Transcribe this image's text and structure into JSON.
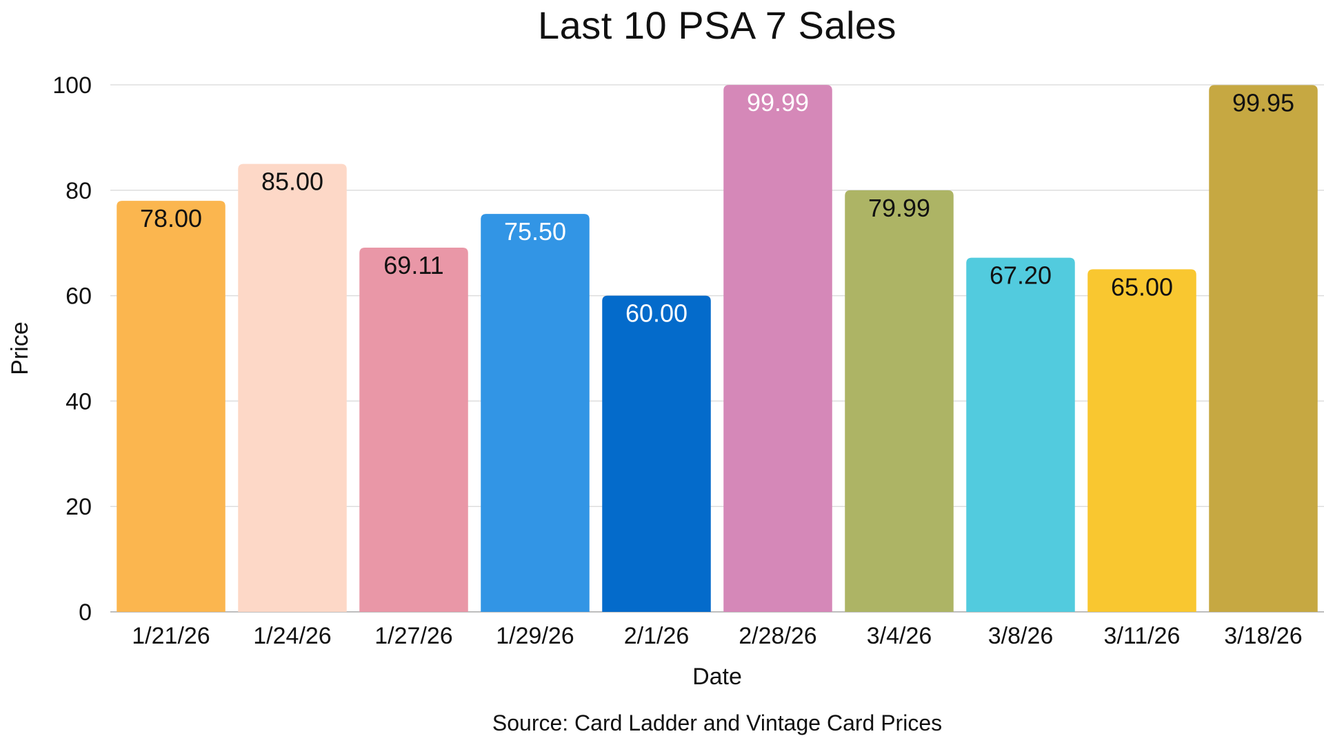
{
  "chart_data": {
    "type": "bar",
    "title": "Last 10 PSA 7 Sales",
    "xlabel": "Date",
    "ylabel": "Price",
    "source": "Source: Card Ladder and Vintage Card Prices",
    "ylim": [
      0,
      100
    ],
    "yticks": [
      "0",
      "20",
      "40",
      "60",
      "80",
      "100"
    ],
    "grid": true,
    "categories": [
      "1/21/26",
      "1/24/26",
      "1/27/26",
      "1/29/26",
      "2/1/26",
      "2/28/26",
      "3/4/26",
      "3/8/26",
      "3/11/26",
      "3/18/26"
    ],
    "values": [
      78.0,
      85.0,
      69.11,
      75.5,
      60.0,
      99.99,
      79.99,
      67.2,
      65.0,
      99.95
    ],
    "labels": [
      "78.00",
      "85.00",
      "69.11",
      "75.50",
      "60.00",
      "99.99",
      "79.99",
      "67.20",
      "65.00",
      "99.95"
    ],
    "colors": [
      "#fbb64f",
      "#fdd8c7",
      "#e997a7",
      "#3295e5",
      "#046bcb",
      "#d588b8",
      "#adb465",
      "#52cbde",
      "#f9c730",
      "#c6a842"
    ],
    "label_colors": [
      "#111111",
      "#111111",
      "#111111",
      "#ffffff",
      "#ffffff",
      "#ffffff",
      "#111111",
      "#111111",
      "#111111",
      "#111111"
    ]
  }
}
